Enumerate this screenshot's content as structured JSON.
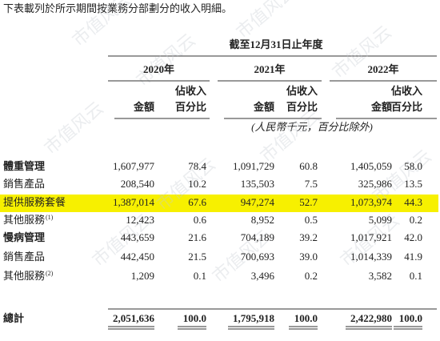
{
  "intro": "下表載列於所示期間按業務分部劃分的收入明細。",
  "watermark": "市值风云",
  "header": {
    "period": "截至12月31日止年度",
    "years": [
      "2020年",
      "2021年",
      "2022年"
    ],
    "amount": "金額",
    "pct_line1": "佔收入",
    "pct_line2": "百分比",
    "unit": "(人民幣千元，百分比除外)"
  },
  "table": {
    "rows": [
      {
        "label": "體重管理",
        "bold": true,
        "note": null,
        "cells": [
          "1,607,977",
          "78.4",
          "1,091,729",
          "60.8",
          "1,405,059",
          "58.0"
        ]
      },
      {
        "label": "銷售產品",
        "bold": false,
        "note": null,
        "cells": [
          "208,540",
          "10.2",
          "135,503",
          "7.5",
          "325,986",
          "13.5"
        ]
      },
      {
        "label": "提供服務套餐",
        "bold": false,
        "note": null,
        "highlight": true,
        "cells": [
          "1,387,014",
          "67.6",
          "947,274",
          "52.7",
          "1,073,974",
          "44.3"
        ]
      },
      {
        "label": "其他服務",
        "bold": false,
        "note": "(1)",
        "cells": [
          "12,423",
          "0.6",
          "8,952",
          "0.5",
          "5,099",
          "0.2"
        ]
      },
      {
        "label": "慢病管理",
        "bold": true,
        "note": null,
        "cells": [
          "443,659",
          "21.6",
          "704,189",
          "39.2",
          "1,017,921",
          "42.0"
        ]
      },
      {
        "label": "銷售產品",
        "bold": false,
        "note": null,
        "cells": [
          "442,450",
          "21.5",
          "700,693",
          "39.0",
          "1,014,339",
          "41.9"
        ]
      },
      {
        "label": "其他服務",
        "bold": false,
        "note": "(2)",
        "cells": [
          "1,209",
          "0.1",
          "3,496",
          "0.2",
          "3,582",
          "0.1"
        ]
      }
    ],
    "total": {
      "label": "總計",
      "cells": [
        "2,051,636",
        "100.0",
        "1,795,918",
        "100.0",
        "2,422,980",
        "100.0"
      ]
    }
  }
}
